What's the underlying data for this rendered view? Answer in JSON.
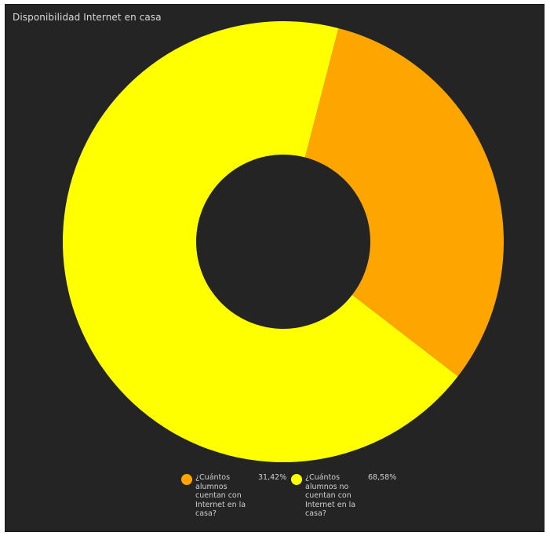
{
  "chart_data": {
    "type": "pie",
    "title": "Disponibilidad Internet en casa",
    "donut": true,
    "slices": [
      {
        "label": "¿Cuántos alumnos cuentan con Internet en la casa?",
        "value": 31.42,
        "display": "31,42%",
        "color": "#ffa500"
      },
      {
        "label": "¿Cuántos alumnos no cuentan con Internet en la casa?",
        "value": 68.58,
        "display": "68,58%",
        "color": "#ffff00"
      }
    ],
    "legend_position": "bottom"
  }
}
